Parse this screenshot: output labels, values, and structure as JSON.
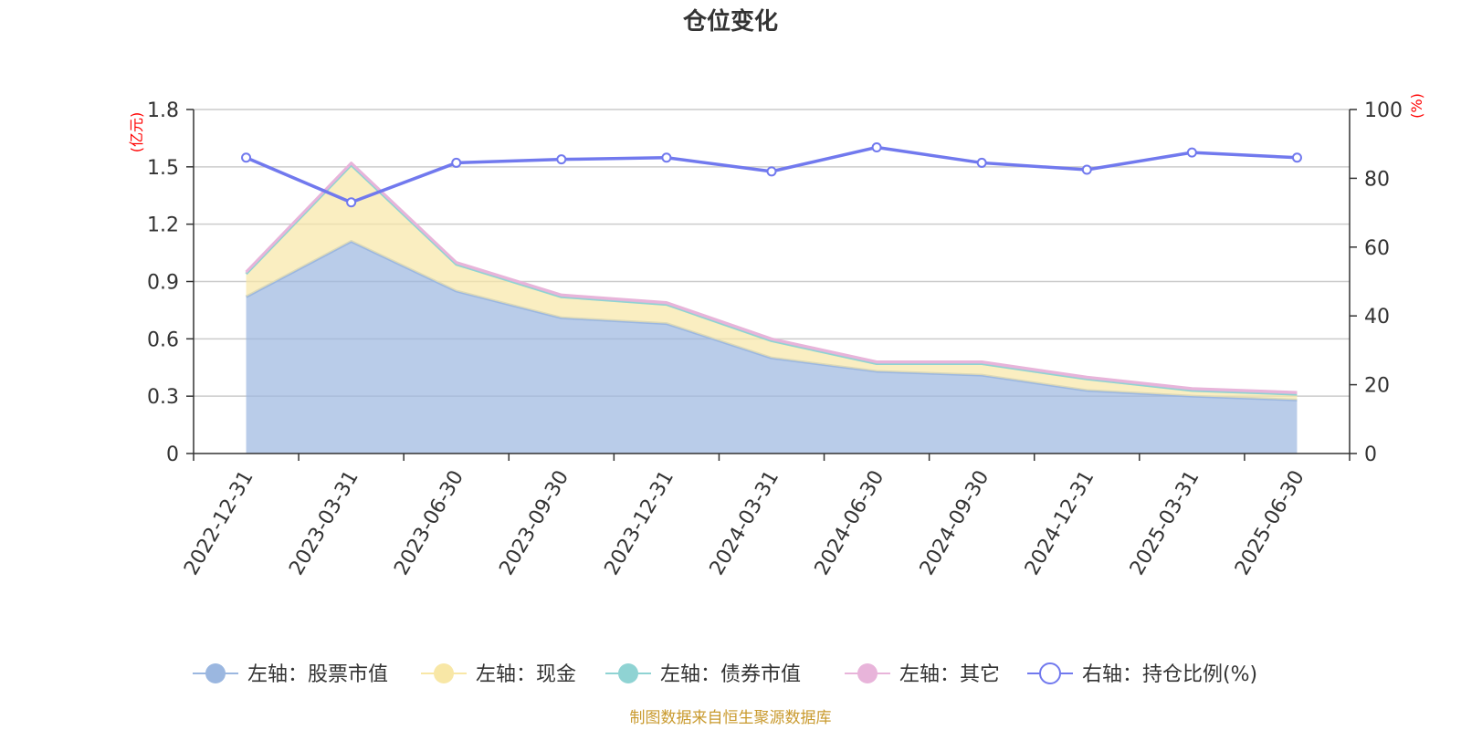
{
  "chart_data": {
    "type": "area",
    "title": "仓位变化",
    "categories": [
      "2022-12-31",
      "2023-03-31",
      "2023-06-30",
      "2023-09-30",
      "2023-12-31",
      "2024-03-31",
      "2024-06-30",
      "2024-09-30",
      "2024-12-31",
      "2025-03-31",
      "2025-06-30"
    ],
    "left_axis": {
      "unit": "(亿元)",
      "ylim": [
        0,
        1.8
      ],
      "ticks": [
        "0",
        "0.3",
        "0.6",
        "0.9",
        "1.2",
        "1.5",
        "1.8"
      ]
    },
    "right_axis": {
      "unit": "(%)",
      "ylim": [
        0,
        100
      ],
      "ticks": [
        "0",
        "20",
        "40",
        "60",
        "80",
        "100"
      ]
    },
    "grid": true,
    "legend_position": "bottom",
    "series": [
      {
        "name": "左轴：股票市值",
        "axis": "left",
        "stack": true,
        "color": "#9bb7e0",
        "values": [
          0.82,
          1.11,
          0.85,
          0.71,
          0.68,
          0.5,
          0.43,
          0.41,
          0.33,
          0.3,
          0.28
        ]
      },
      {
        "name": "左轴：现金",
        "axis": "left",
        "stack": true,
        "color": "#f8e7a6",
        "values": [
          0.12,
          0.4,
          0.14,
          0.11,
          0.1,
          0.09,
          0.04,
          0.06,
          0.06,
          0.03,
          0.03
        ]
      },
      {
        "name": "左轴：债券市值",
        "axis": "left",
        "stack": true,
        "color": "#8fd3d3",
        "values": [
          0,
          0,
          0,
          0,
          0,
          0,
          0,
          0,
          0,
          0,
          0
        ]
      },
      {
        "name": "左轴：其它",
        "axis": "left",
        "stack": true,
        "color": "#e8b4da",
        "values": [
          0.01,
          0.01,
          0.01,
          0.01,
          0.01,
          0.01,
          0.01,
          0.01,
          0.01,
          0.01,
          0.01
        ]
      },
      {
        "name": "右轴：持仓比例(%)",
        "axis": "right",
        "stack": false,
        "color": "#7179ee",
        "values": [
          86,
          73,
          84.5,
          85.5,
          86,
          82,
          89,
          84.5,
          82.5,
          87.5,
          86
        ]
      }
    ]
  },
  "source_note": "制图数据来自恒生聚源数据库"
}
